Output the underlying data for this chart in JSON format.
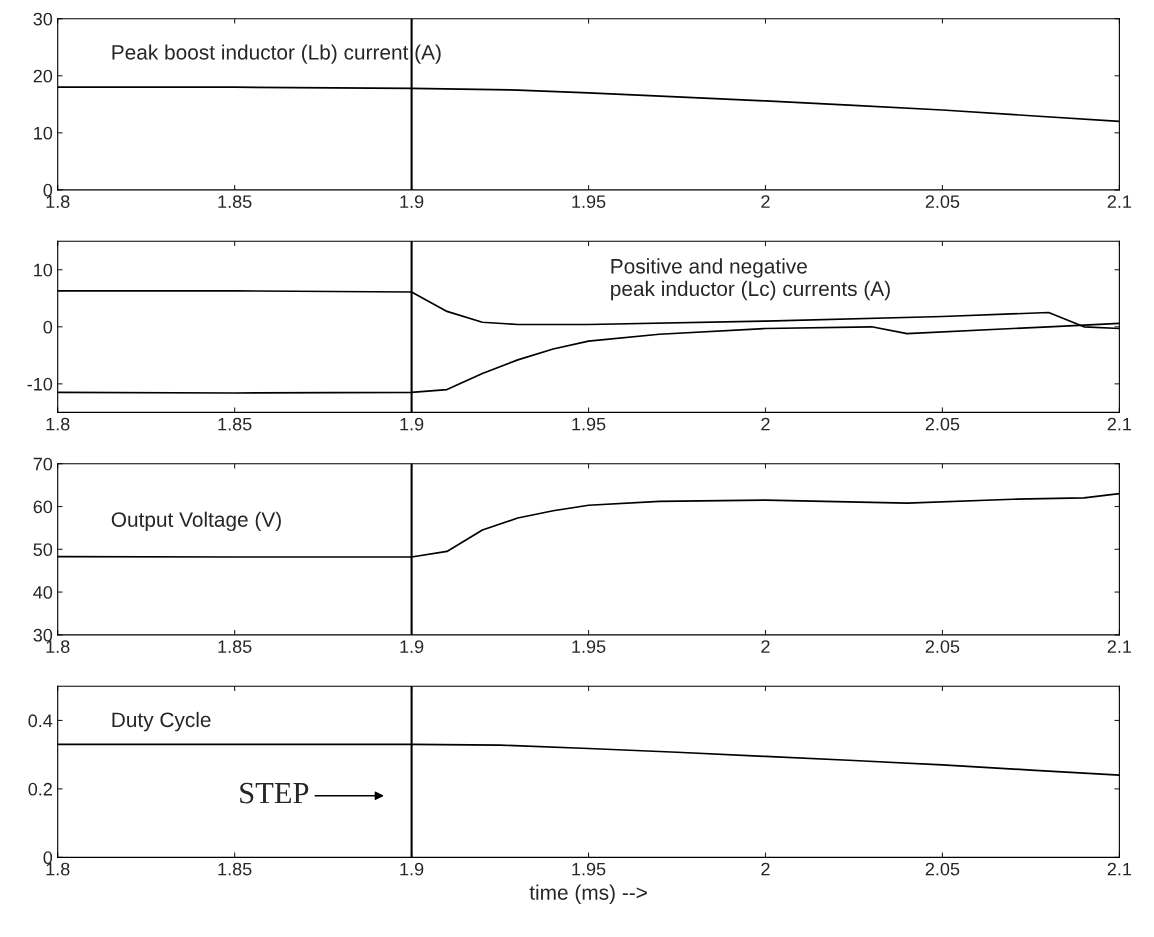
{
  "chart_data": [
    {
      "type": "line",
      "title": "Peak boost inductor (Lb) current (A)",
      "xlim": [
        1.8,
        2.1
      ],
      "xticks": [
        1.8,
        1.85,
        1.9,
        1.95,
        2,
        2.05,
        2.1
      ],
      "ylim": [
        0,
        30
      ],
      "yticks": [
        0,
        10,
        20,
        30
      ],
      "grid": false,
      "ref_lines": [
        {
          "axis": "x",
          "value": 1.9
        }
      ],
      "series": [
        {
          "color": "#000000",
          "x": [
            1.8,
            1.85,
            1.9,
            1.93,
            1.95,
            1.975,
            2.0,
            2.025,
            2.05,
            2.075,
            2.1
          ],
          "values": [
            18,
            18,
            17.8,
            17.5,
            17,
            16.3,
            15.6,
            14.8,
            14,
            13,
            12
          ]
        }
      ]
    },
    {
      "type": "line",
      "title": "Positive and negative\npeak inductor (Lc) currents (A)",
      "xlim": [
        1.8,
        2.1
      ],
      "xticks": [
        1.8,
        1.85,
        1.9,
        1.95,
        2,
        2.05,
        2.1
      ],
      "ylim": [
        -15,
        15
      ],
      "yticks": [
        -10,
        0,
        10
      ],
      "grid": false,
      "ref_lines": [
        {
          "axis": "x",
          "value": 1.9
        }
      ],
      "series": [
        {
          "color": "#000000",
          "x": [
            1.8,
            1.85,
            1.9,
            1.91,
            1.92,
            1.93,
            1.95,
            2.0,
            2.05,
            2.08,
            2.09,
            2.1
          ],
          "values": [
            6.3,
            6.3,
            6.1,
            2.7,
            0.8,
            0.4,
            0.4,
            1.0,
            1.8,
            2.5,
            0,
            -0.3
          ]
        },
        {
          "color": "#000000",
          "x": [
            1.8,
            1.85,
            1.9,
            1.91,
            1.92,
            1.93,
            1.94,
            1.95,
            1.97,
            2.0,
            2.03,
            2.04,
            2.08,
            2.1
          ],
          "values": [
            -11.5,
            -11.6,
            -11.5,
            -11,
            -8.2,
            -5.8,
            -3.9,
            -2.5,
            -1.3,
            -0.3,
            0,
            -1.2,
            0,
            0.6
          ]
        }
      ]
    },
    {
      "type": "line",
      "title": "Output Voltage (V)",
      "xlim": [
        1.8,
        2.1
      ],
      "xticks": [
        1.8,
        1.85,
        1.9,
        1.95,
        2,
        2.05,
        2.1
      ],
      "ylim": [
        30,
        70
      ],
      "yticks": [
        30,
        40,
        50,
        60,
        70
      ],
      "grid": false,
      "ref_lines": [
        {
          "axis": "x",
          "value": 1.9
        }
      ],
      "series": [
        {
          "color": "#000000",
          "x": [
            1.8,
            1.85,
            1.9,
            1.91,
            1.92,
            1.93,
            1.94,
            1.95,
            1.97,
            2.0,
            2.04,
            2.07,
            2.09,
            2.1
          ],
          "values": [
            48.3,
            48.2,
            48.2,
            49.5,
            54.5,
            57.3,
            59,
            60.3,
            61.2,
            61.5,
            60.8,
            61.7,
            62,
            63
          ]
        }
      ]
    },
    {
      "type": "line",
      "title": "Duty Cycle",
      "xlabel": "time (ms) -->",
      "xlim": [
        1.8,
        2.1
      ],
      "xticks": [
        1.8,
        1.85,
        1.9,
        1.95,
        2,
        2.05,
        2.1
      ],
      "ylim": [
        0,
        0.5
      ],
      "yticks": [
        0,
        0.2,
        0.4
      ],
      "grid": false,
      "ref_lines": [
        {
          "axis": "x",
          "value": 1.9
        }
      ],
      "annotations": [
        "STEP"
      ],
      "series": [
        {
          "color": "#000000",
          "x": [
            1.8,
            1.85,
            1.9,
            1.925,
            1.95,
            1.975,
            2.0,
            2.025,
            2.05,
            2.075,
            2.1
          ],
          "values": [
            0.33,
            0.33,
            0.33,
            0.328,
            0.318,
            0.307,
            0.295,
            0.283,
            0.27,
            0.255,
            0.24
          ]
        }
      ]
    }
  ]
}
